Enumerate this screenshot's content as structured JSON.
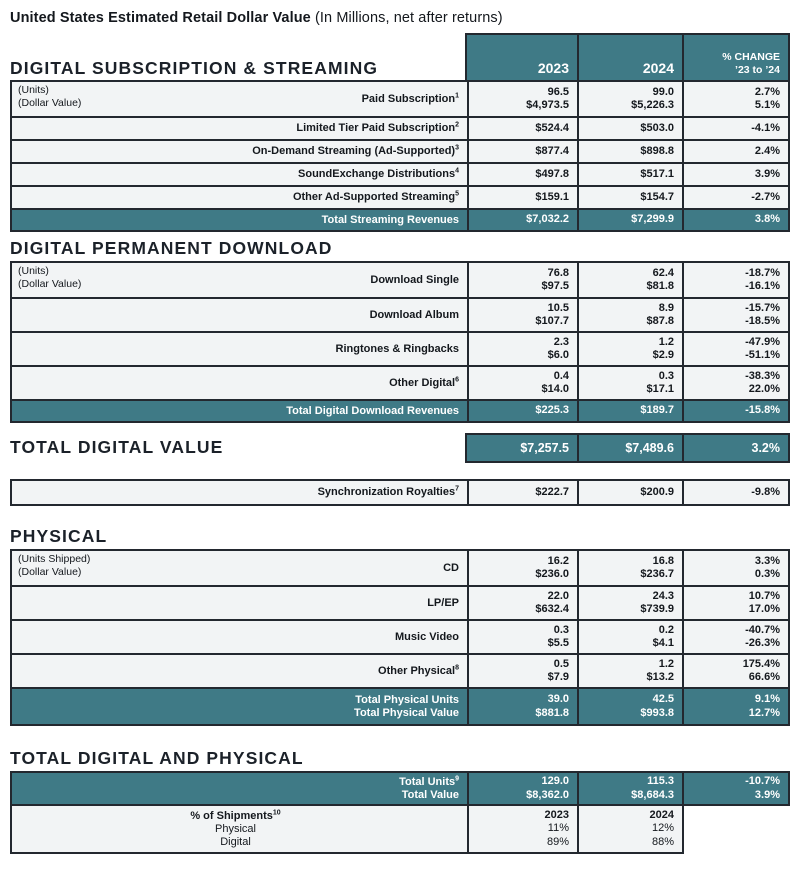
{
  "title": {
    "main": "United States Estimated Retail Dollar Value",
    "sub": " (In Millions, net after returns)"
  },
  "colors": {
    "teal": "#3f7a86",
    "border": "#23282f",
    "row_bg": "#f2f4f5",
    "heading": "#1b2129"
  },
  "header": {
    "y2023": "2023",
    "y2024": "2024",
    "change1": "% CHANGE",
    "change2": "’23 to ’24"
  },
  "sections": [
    {
      "type": "table",
      "heading": "DIGITAL SUBSCRIPTION & STREAMING",
      "with_header": true,
      "rows": [
        {
          "kind": "data",
          "notes": [
            "(Units)",
            "(Dollar Value)"
          ],
          "label": "Paid Subscription",
          "sup": "1",
          "c2023": [
            "96.5",
            "$4,973.5"
          ],
          "c2024": [
            "99.0",
            "$5,226.3"
          ],
          "change": [
            "2.7%",
            "5.1%"
          ]
        },
        {
          "kind": "data",
          "label": "Limited Tier Paid Subscription",
          "sup": "2",
          "c2023": [
            "$524.4"
          ],
          "c2024": [
            "$503.0"
          ],
          "change": [
            "-4.1%"
          ]
        },
        {
          "kind": "data",
          "label": "On-Demand Streaming (Ad-Supported)",
          "sup": "3",
          "c2023": [
            "$877.4"
          ],
          "c2024": [
            "$898.8"
          ],
          "change": [
            "2.4%"
          ]
        },
        {
          "kind": "data",
          "label": "SoundExchange Distributions",
          "sup": "4",
          "c2023": [
            "$497.8"
          ],
          "c2024": [
            "$517.1"
          ],
          "change": [
            "3.9%"
          ]
        },
        {
          "kind": "data",
          "label": "Other Ad-Supported Streaming",
          "sup": "5",
          "c2023": [
            "$159.1"
          ],
          "c2024": [
            "$154.7"
          ],
          "change": [
            "-2.7%"
          ]
        },
        {
          "kind": "total",
          "labels": [
            "Total Streaming Revenues"
          ],
          "c2023": [
            "$7,032.2"
          ],
          "c2024": [
            "$7,299.9"
          ],
          "change": [
            "3.8%"
          ]
        }
      ]
    },
    {
      "type": "table",
      "heading": "DIGITAL PERMANENT DOWNLOAD",
      "rows": [
        {
          "kind": "data",
          "notes": [
            "(Units)",
            "(Dollar Value)"
          ],
          "label": "Download Single",
          "c2023": [
            "76.8",
            "$97.5"
          ],
          "c2024": [
            "62.4",
            "$81.8"
          ],
          "change": [
            "-18.7%",
            "-16.1%"
          ]
        },
        {
          "kind": "data",
          "label": "Download Album",
          "c2023": [
            "10.5",
            "$107.7"
          ],
          "c2024": [
            "8.9",
            "$87.8"
          ],
          "change": [
            "-15.7%",
            "-18.5%"
          ]
        },
        {
          "kind": "data",
          "label": "Ringtones & Ringbacks",
          "c2023": [
            "2.3",
            "$6.0"
          ],
          "c2024": [
            "1.2",
            "$2.9"
          ],
          "change": [
            "-47.9%",
            "-51.1%"
          ]
        },
        {
          "kind": "data",
          "label": "Other Digital",
          "sup": "6",
          "c2023": [
            "0.4",
            "$14.0"
          ],
          "c2024": [
            "0.3",
            "$17.1"
          ],
          "change": [
            "-38.3%",
            "22.0%"
          ]
        },
        {
          "kind": "total",
          "labels": [
            "Total Digital Download Revenues"
          ],
          "c2023": [
            "$225.3"
          ],
          "c2024": [
            "$189.7"
          ],
          "change": [
            "-15.8%"
          ]
        }
      ]
    },
    {
      "type": "inline_total",
      "heading": "TOTAL DIGITAL VALUE",
      "c2023": "$7,257.5",
      "c2024": "$7,489.6",
      "change": "3.2%"
    },
    {
      "type": "table",
      "rows": [
        {
          "kind": "data",
          "label": "Synchronization Royalties",
          "sup": "7",
          "c2023": [
            "$222.7"
          ],
          "c2024": [
            "$200.9"
          ],
          "change": [
            "-9.8%"
          ]
        }
      ]
    },
    {
      "type": "table",
      "heading": "PHYSICAL",
      "rows": [
        {
          "kind": "data",
          "notes": [
            "(Units Shipped)",
            "(Dollar Value)"
          ],
          "label": "CD",
          "c2023": [
            "16.2",
            "$236.0"
          ],
          "c2024": [
            "16.8",
            "$236.7"
          ],
          "change": [
            "3.3%",
            "0.3%"
          ]
        },
        {
          "kind": "data",
          "label": "LP/EP",
          "c2023": [
            "22.0",
            "$632.4"
          ],
          "c2024": [
            "24.3",
            "$739.9"
          ],
          "change": [
            "10.7%",
            "17.0%"
          ]
        },
        {
          "kind": "data",
          "label": "Music Video",
          "c2023": [
            "0.3",
            "$5.5"
          ],
          "c2024": [
            "0.2",
            "$4.1"
          ],
          "change": [
            "-40.7%",
            "-26.3%"
          ]
        },
        {
          "kind": "data",
          "label": "Other Physical",
          "sup": "8",
          "c2023": [
            "0.5",
            "$7.9"
          ],
          "c2024": [
            "1.2",
            "$13.2"
          ],
          "change": [
            "175.4%",
            "66.6%"
          ]
        },
        {
          "kind": "total",
          "labels": [
            "Total Physical Units",
            "Total Physical Value"
          ],
          "c2023": [
            "39.0",
            "$881.8"
          ],
          "c2024": [
            "42.5",
            "$993.8"
          ],
          "change": [
            "9.1%",
            "12.7%"
          ]
        }
      ]
    },
    {
      "type": "table",
      "heading": "TOTAL DIGITAL AND PHYSICAL",
      "rows": [
        {
          "kind": "total",
          "standalone": true,
          "labels": [
            "Total Units",
            "Total Value"
          ],
          "sup": "9",
          "c2023": [
            "129.0",
            "$8,362.0"
          ],
          "c2024": [
            "115.3",
            "$8,684.3"
          ],
          "change": [
            "-10.7%",
            "3.9%"
          ]
        },
        {
          "kind": "shipments",
          "label_bold": "% of Shipments",
          "sup": "10",
          "labels": [
            "Physical",
            "Digital"
          ],
          "c2023": [
            "2023",
            "11%",
            "89%"
          ],
          "c2024": [
            "2024",
            "12%",
            "88%"
          ]
        }
      ]
    }
  ]
}
